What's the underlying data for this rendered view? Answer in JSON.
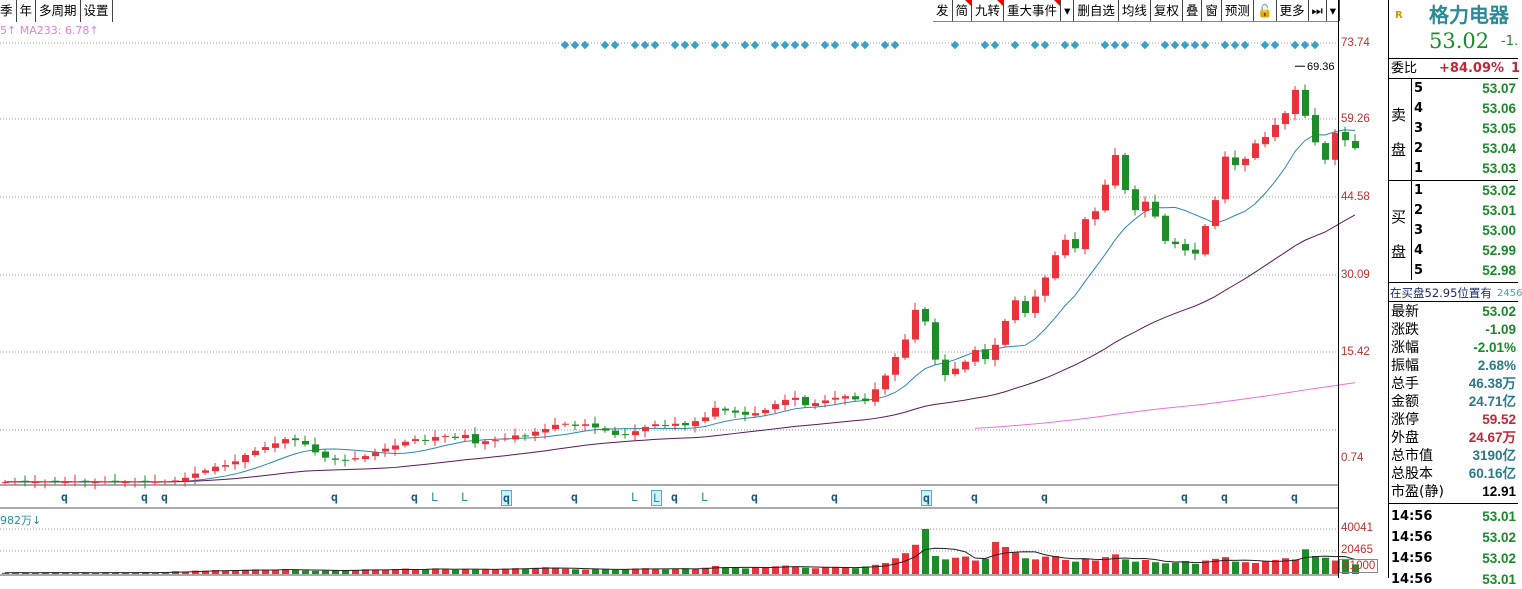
{
  "toolbar_left": [
    "季",
    "年",
    "多周期",
    "设置"
  ],
  "toolbar_right": [
    {
      "label": "发"
    },
    {
      "label": "简",
      "flag": true
    },
    {
      "label": "九转",
      "flag": true
    },
    {
      "label": "重大事件",
      "flag": true
    },
    {
      "label": "▾"
    },
    {
      "label": "删自选"
    },
    {
      "label": "均线"
    },
    {
      "label": "复权"
    },
    {
      "label": "叠"
    },
    {
      "label": "窗"
    },
    {
      "label": "预测"
    },
    {
      "label": "🔓"
    },
    {
      "label": "更多"
    },
    {
      "label": "⏭"
    },
    {
      "label": "▾"
    }
  ],
  "ma_legend": "5↑  MA233: 6.78↑",
  "volume_legend": "982万↓",
  "price_axis": [
    "73.74",
    "59.26",
    "44.58",
    "30.09",
    "15.42",
    "0.74"
  ],
  "volume_axis": [
    "40041",
    "20465",
    "X1000"
  ],
  "peak_label": "69.36",
  "colors": {
    "up": "#e8323c",
    "down": "#1e8c28",
    "ma1": "#2a8ab0",
    "ma2": "#5a1a5a",
    "ma3": "#f070e0",
    "marker": "#3aa0c8"
  },
  "chart_data": {
    "type": "candlestick",
    "closes": [
      -9.1,
      -9.0,
      -9.1,
      -9.1,
      -9.0,
      -9.1,
      -9.1,
      -9.0,
      -9.1,
      -9.1,
      -9.0,
      -9.1,
      -9.1,
      -9.0,
      -9.1,
      -9.0,
      -9.0,
      -8.8,
      -8.3,
      -7.5,
      -6.9,
      -6.2,
      -5.9,
      -5.2,
      -4.0,
      -3.2,
      -2.5,
      -1.8,
      -1.0,
      -1.2,
      -2.0,
      -3.5,
      -4.5,
      -4.9,
      -5.0,
      -4.6,
      -4.2,
      -3.5,
      -2.8,
      -2.2,
      -1.5,
      -1.0,
      -1.3,
      -0.6,
      -0.4,
      -0.8,
      -0.2,
      -1.8,
      -1.4,
      -1.2,
      -0.9,
      -0.3,
      -0.5,
      0.4,
      0.9,
      1.7,
      1.9,
      1.5,
      1.8,
      1.2,
      0.6,
      -0.2,
      -0.1,
      0.5,
      1.3,
      1.8,
      1.5,
      1.9,
      1.6,
      2.4,
      3.1,
      4.9,
      4.4,
      4.0,
      3.6,
      3.9,
      4.5,
      5.6,
      6.4,
      6.8,
      5.4,
      5.8,
      6.3,
      6.8,
      7.1,
      6.5,
      6.2,
      8.4,
      11.0,
      14.5,
      17.8,
      23.4,
      21.2,
      14.0,
      11.1,
      12.3,
      13.6,
      15.8,
      14.1,
      16.8,
      21.3,
      25.2,
      22.8,
      25.9,
      29.5,
      33.7,
      36.6,
      35.0,
      40.5,
      42.0,
      47.0,
      52.6,
      46.0,
      42.2,
      43.8,
      41.0,
      36.4,
      35.8,
      34.6,
      34.0,
      39.2,
      44.1,
      52.3,
      50.7,
      51.9,
      54.8,
      56.0,
      58.3,
      60.5,
      64.9,
      60.0,
      55.0,
      51.7,
      56.8,
      55.4,
      53.9
    ],
    "volumes": [
      1100,
      1300,
      1200,
      1000,
      1400,
      1200,
      1100,
      1300,
      1200,
      1000,
      1500,
      1200,
      1300,
      1100,
      1400,
      1200,
      1600,
      2500,
      2200,
      3000,
      2800,
      3500,
      3200,
      2900,
      3800,
      4100,
      3600,
      3300,
      4500,
      3900,
      3100,
      2800,
      3000,
      3400,
      3200,
      3600,
      4200,
      3900,
      3500,
      4400,
      4800,
      3600,
      4200,
      5000,
      4600,
      3800,
      4300,
      3900,
      4500,
      4100,
      4700,
      5200,
      4800,
      5500,
      6000,
      5300,
      4700,
      4200,
      3900,
      4600,
      4100,
      3800,
      4300,
      4900,
      5200,
      4400,
      4000,
      4700,
      5100,
      4500,
      5600,
      7200,
      6100,
      5400,
      5000,
      5800,
      6300,
      6800,
      7500,
      6200,
      5600,
      5100,
      5900,
      6400,
      5800,
      5200,
      6700,
      8200,
      9800,
      14000,
      18500,
      26000,
      40041,
      16000,
      13000,
      14500,
      15500,
      12000,
      13500,
      28500,
      24000,
      19000,
      14000,
      13000,
      15500,
      16000,
      12500,
      11000,
      13500,
      12000,
      15000,
      17500,
      13000,
      11000,
      12500,
      10500,
      9500,
      10000,
      11500,
      9000,
      12000,
      13500,
      15000,
      11000,
      10500,
      9800,
      11200,
      12500,
      14000,
      13000,
      22000,
      16000,
      14500,
      12000,
      13500,
      8500
    ],
    "price_range": [
      -10.5,
      73.74
    ],
    "peak": 69.36,
    "marker_bars": [
      56,
      57,
      58,
      60,
      61,
      63,
      64,
      65,
      67,
      68,
      69,
      71,
      72,
      74,
      75,
      77,
      78,
      79,
      80,
      82,
      83,
      85,
      86,
      88,
      89,
      95,
      98,
      99,
      101,
      103,
      104,
      106,
      107,
      110,
      111,
      112,
      114,
      116,
      117,
      118,
      119,
      120,
      122,
      123,
      124,
      126,
      127,
      129,
      130,
      131
    ],
    "signals": [
      {
        "bar": 6,
        "t": "q"
      },
      {
        "bar": 14,
        "t": "q"
      },
      {
        "bar": 16,
        "t": "q"
      },
      {
        "bar": 33,
        "t": "q"
      },
      {
        "bar": 41,
        "t": "q"
      },
      {
        "bar": 43,
        "t": "L"
      },
      {
        "bar": 46,
        "t": "L"
      },
      {
        "bar": 50,
        "t": "q",
        "box": true
      },
      {
        "bar": 57,
        "t": "q"
      },
      {
        "bar": 63,
        "t": "L"
      },
      {
        "bar": 65,
        "t": "L",
        "box": true
      },
      {
        "bar": 67,
        "t": "q"
      },
      {
        "bar": 70,
        "t": "L"
      },
      {
        "bar": 75,
        "t": "q"
      },
      {
        "bar": 83,
        "t": "q"
      },
      {
        "bar": 92,
        "t": "q",
        "box": true
      },
      {
        "bar": 97,
        "t": "q"
      },
      {
        "bar": 104,
        "t": "q"
      },
      {
        "bar": 118,
        "t": "q"
      },
      {
        "bar": 122,
        "t": "q"
      },
      {
        "bar": 129,
        "t": "q"
      }
    ]
  },
  "panel": {
    "badge": "R",
    "name": "格力电器",
    "price": "53.02",
    "change": "-1.",
    "weibi_label": "委比",
    "weibi": "+84.09%",
    "weibi_extra": "1",
    "sell_label": [
      "卖",
      "盘"
    ],
    "buy_label": [
      "买",
      "盘"
    ],
    "sell": [
      [
        "5",
        "53.07"
      ],
      [
        "4",
        "53.06"
      ],
      [
        "3",
        "53.05"
      ],
      [
        "2",
        "53.04"
      ],
      [
        "1",
        "53.03"
      ]
    ],
    "buy": [
      [
        "1",
        "53.02"
      ],
      [
        "2",
        "53.01"
      ],
      [
        "3",
        "53.00"
      ],
      [
        "4",
        "52.99"
      ],
      [
        "5",
        "52.98"
      ]
    ],
    "order_note": "在买盘52.95位置有",
    "order_qty": "2456",
    "stats": [
      [
        "最新",
        "53.02",
        "g"
      ],
      [
        "涨跌",
        "-1.09",
        "g"
      ],
      [
        "涨幅",
        "-2.01%",
        "g"
      ],
      [
        "振幅",
        "2.68%",
        "t"
      ],
      [
        "总手",
        "46.38万",
        "t"
      ],
      [
        "金额",
        "24.71亿",
        "t"
      ],
      [
        "涨停",
        "59.52",
        "r"
      ],
      [
        "外盘",
        "24.67万",
        "r"
      ],
      [
        "总市值",
        "3190亿",
        "t"
      ],
      [
        "总股本",
        "60.16亿",
        "t"
      ],
      [
        "市盈(静)",
        "12.91",
        "k"
      ]
    ],
    "ticks": [
      [
        "14:56",
        "53.01"
      ],
      [
        "14:56",
        "53.02"
      ],
      [
        "14:56",
        "53.02"
      ],
      [
        "14:56",
        "53.01"
      ]
    ]
  }
}
